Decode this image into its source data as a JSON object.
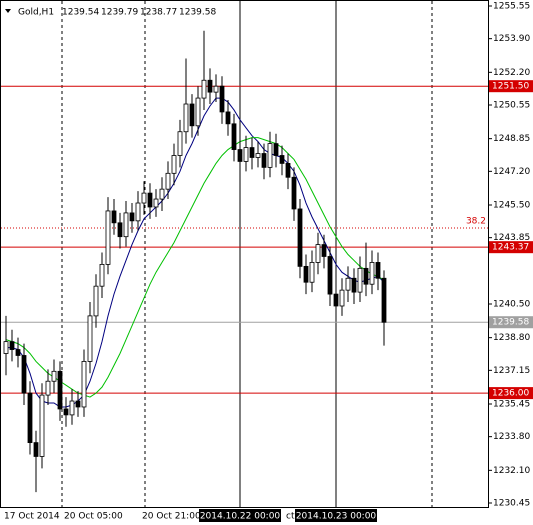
{
  "chart_data": {
    "type": "candlestick",
    "title": "Gold,H1",
    "info_values": [
      1239.54,
      1239.79,
      1238.77,
      1239.58
    ],
    "categories": [
      "17 Oct 2014",
      null,
      null,
      null,
      null,
      null,
      null,
      null,
      null,
      null,
      "20 Oct 05:00",
      null,
      null,
      null,
      null,
      null,
      null,
      null,
      null,
      null,
      null,
      null,
      null,
      "20 Oct 21:00",
      null,
      null,
      null,
      null,
      null,
      null,
      null,
      null,
      null,
      null,
      null,
      null,
      null,
      null,
      null,
      "2014.10.22 00:00",
      null,
      null,
      null,
      null,
      null,
      null,
      null,
      "ct 0",
      null,
      null,
      null,
      null,
      null,
      null,
      null,
      "2014.10.23 00:00",
      null,
      null,
      null,
      null,
      null,
      null,
      null,
      null
    ],
    "crosshair_categories": [
      39,
      55
    ],
    "open": [
      1238.0,
      1238.6,
      1238.2,
      1237.9,
      1236.0,
      1233.5,
      1232.8,
      1235.9,
      1236.6,
      1237.1,
      1235.2,
      1234.9,
      1235.6,
      1235.3,
      1237.6,
      1239.9,
      1241.4,
      1242.5,
      1245.2,
      1244.6,
      1243.9,
      1245.1,
      1244.7,
      1245.6,
      1246.1,
      1245.4,
      1245.8,
      1246.3,
      1247.1,
      1248.0,
      1249.2,
      1250.6,
      1249.5,
      1250.9,
      1251.8,
      1251.2,
      1251.5,
      1250.2,
      1249.6,
      1248.3,
      1247.7,
      1248.4,
      1247.9,
      1248.1,
      1247.4,
      1248.6,
      1248.0,
      1247.6,
      1246.9,
      1245.3,
      1242.4,
      1241.6,
      1242.6,
      1243.5,
      1242.9,
      1241.0,
      1240.4,
      1241.2,
      1241.8,
      1241.1,
      1242.3,
      1241.5,
      1242.6,
      1241.8
    ],
    "high": [
      1239.9,
      1239.2,
      1238.8,
      1238.5,
      1236.6,
      1234.1,
      1236.5,
      1237.2,
      1237.7,
      1237.6,
      1235.8,
      1236.2,
      1236.1,
      1238.2,
      1240.6,
      1242.0,
      1243.1,
      1245.9,
      1245.8,
      1245.1,
      1245.7,
      1245.6,
      1246.2,
      1246.7,
      1246.6,
      1246.3,
      1246.9,
      1247.7,
      1248.6,
      1249.8,
      1252.9,
      1251.1,
      1251.5,
      1254.3,
      1252.4,
      1252.1,
      1252.0,
      1250.8,
      1250.1,
      1248.9,
      1249.0,
      1248.9,
      1248.7,
      1248.6,
      1249.2,
      1249.1,
      1248.5,
      1248.1,
      1247.4,
      1245.8,
      1243.0,
      1243.2,
      1244.1,
      1244.0,
      1243.4,
      1241.5,
      1241.8,
      1242.4,
      1242.3,
      1242.9,
      1243.6,
      1243.2,
      1243.1,
      1242.2
    ],
    "low": [
      1236.9,
      1237.6,
      1237.3,
      1235.4,
      1232.9,
      1231.0,
      1232.2,
      1235.4,
      1236.0,
      1234.6,
      1234.3,
      1234.4,
      1234.8,
      1234.8,
      1237.0,
      1239.3,
      1240.8,
      1242.0,
      1244.0,
      1243.3,
      1243.4,
      1244.1,
      1244.2,
      1245.0,
      1244.8,
      1244.9,
      1245.2,
      1245.8,
      1246.5,
      1247.4,
      1248.6,
      1248.9,
      1249.0,
      1250.3,
      1250.6,
      1250.7,
      1249.6,
      1249.0,
      1247.7,
      1247.1,
      1247.2,
      1247.3,
      1247.4,
      1246.8,
      1246.9,
      1247.4,
      1247.0,
      1246.3,
      1244.7,
      1241.8,
      1241.0,
      1241.1,
      1242.0,
      1242.3,
      1240.4,
      1239.8,
      1239.9,
      1240.6,
      1240.5,
      1240.6,
      1240.9,
      1241.0,
      1241.2,
      1238.4
    ],
    "close": [
      1238.6,
      1238.2,
      1237.9,
      1236.0,
      1233.5,
      1232.8,
      1235.9,
      1236.6,
      1237.1,
      1235.2,
      1234.9,
      1235.6,
      1235.3,
      1237.6,
      1239.9,
      1241.4,
      1242.5,
      1245.2,
      1244.6,
      1243.9,
      1245.1,
      1244.7,
      1245.6,
      1246.1,
      1245.4,
      1245.8,
      1246.3,
      1247.1,
      1248.0,
      1249.2,
      1250.6,
      1249.5,
      1250.9,
      1251.8,
      1251.2,
      1251.5,
      1250.2,
      1249.6,
      1248.3,
      1247.7,
      1248.4,
      1247.9,
      1248.1,
      1247.4,
      1248.6,
      1248.0,
      1247.6,
      1246.9,
      1245.3,
      1242.4,
      1241.6,
      1242.6,
      1243.5,
      1242.9,
      1241.0,
      1240.4,
      1241.2,
      1241.8,
      1241.1,
      1242.3,
      1241.5,
      1242.6,
      1241.8,
      1239.58
    ],
    "lines": [
      {
        "color": "#000080",
        "values": [
          1238.3,
          1238.3,
          1238.2,
          1237.8,
          1237.0,
          1236.0,
          1235.6,
          1235.5,
          1235.5,
          1235.3,
          1235.3,
          1235.4,
          1235.6,
          1235.9,
          1236.6,
          1237.5,
          1238.6,
          1239.9,
          1241.0,
          1241.9,
          1242.7,
          1243.5,
          1244.2,
          1244.8,
          1245.1,
          1245.4,
          1245.7,
          1246.1,
          1246.6,
          1247.2,
          1248.0,
          1248.6,
          1249.3,
          1250.0,
          1250.5,
          1250.9,
          1250.9,
          1250.7,
          1250.3,
          1249.8,
          1249.4,
          1249.0,
          1248.7,
          1248.3,
          1248.1,
          1248.0,
          1247.9,
          1247.6,
          1247.2,
          1246.5,
          1245.6,
          1244.9,
          1244.3,
          1243.7,
          1243.1,
          1242.5,
          1242.1,
          1241.9,
          1241.7,
          1241.6,
          1241.7,
          1241.8,
          1241.9,
          1241.6
        ]
      },
      {
        "color": "#00c000",
        "values": [
          1238.7,
          1238.6,
          1238.5,
          1238.3,
          1238.0,
          1237.6,
          1237.3,
          1237.0,
          1236.8,
          1236.6,
          1236.4,
          1236.2,
          1236.0,
          1235.9,
          1235.8,
          1236.0,
          1236.3,
          1236.8,
          1237.4,
          1238.0,
          1238.7,
          1239.4,
          1240.1,
          1240.8,
          1241.5,
          1242.1,
          1242.6,
          1243.1,
          1243.6,
          1244.2,
          1244.8,
          1245.4,
          1246.0,
          1246.6,
          1247.1,
          1247.6,
          1248.0,
          1248.3,
          1248.5,
          1248.7,
          1248.8,
          1248.9,
          1248.9,
          1248.8,
          1248.7,
          1248.6,
          1248.4,
          1248.1,
          1247.8,
          1247.3,
          1246.8,
          1246.2,
          1245.6,
          1245.0,
          1244.4,
          1243.9,
          1243.4,
          1243.0,
          1242.7,
          1242.4,
          1242.2,
          1242.0,
          1241.9,
          1241.7
        ]
      }
    ],
    "ylim": [
      1230.45,
      1255.55
    ],
    "yticks": [
      1255.55,
      {
        "value": 1253.9,
        "label": "1253.90"
      },
      {
        "value": 1252.2,
        "label": "1252.20"
      },
      1250.55,
      1248.85,
      {
        "value": 1247.2,
        "label": "1247.20"
      },
      {
        "value": 1245.5,
        "label": "1245.50"
      },
      1243.85,
      {
        "value": 1240.5,
        "label": "1240.50"
      },
      {
        "value": 1238.8,
        "label": "1238.80"
      },
      1237.15,
      1235.45,
      {
        "value": 1233.8,
        "label": "1233.80"
      },
      {
        "value": 1232.1,
        "label": "1232.10"
      },
      1230.45
    ],
    "levels": [
      {
        "value": 1251.5,
        "label": "1251.50",
        "color": "#d40000"
      },
      {
        "value": 1243.37,
        "label": "1243.37",
        "color": "#d40000"
      },
      {
        "value": 1236.0,
        "label": "1236.00",
        "color": "#d40000"
      },
      {
        "value": 1239.58,
        "label": "1239.58",
        "color": "#a0a0a0"
      }
    ],
    "fib": {
      "level": 38.2,
      "price": 1244.34,
      "color": "#d40000"
    },
    "bull_color": "#ffffff",
    "bear_color": "#000000"
  }
}
